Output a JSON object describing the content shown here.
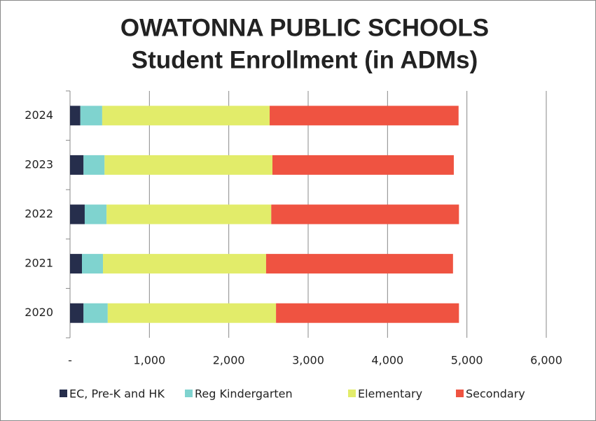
{
  "chart_data": {
    "type": "stacked-barh",
    "title": "OWATONNA PUBLIC SCHOOLS",
    "subtitle": "Student Enrollment (in ADMs)",
    "categories": [
      "2024",
      "2023",
      "2022",
      "2021",
      "2020"
    ],
    "series": [
      {
        "name": "EC, Pre-K and HK",
        "color": "#262e4c",
        "values": [
          130,
          170,
          185,
          150,
          170
        ]
      },
      {
        "name": "Reg Kindergarten",
        "color": "#7fd3cf",
        "values": [
          275,
          265,
          275,
          265,
          305
        ]
      },
      {
        "name": "Elementary",
        "color": "#e2ec6a",
        "values": [
          2110,
          2115,
          2075,
          2055,
          2120
        ]
      },
      {
        "name": "Secondary",
        "color": "#ef5341",
        "values": [
          2380,
          2285,
          2365,
          2355,
          2305
        ]
      }
    ],
    "xlim": [
      0,
      6000
    ],
    "xticks": [
      {
        "value": 0,
        "label": "-"
      },
      {
        "value": 1000,
        "label": "1,000"
      },
      {
        "value": 2000,
        "label": "2,000"
      },
      {
        "value": 3000,
        "label": "3,000"
      },
      {
        "value": 4000,
        "label": "4,000"
      },
      {
        "value": 5000,
        "label": "5,000"
      },
      {
        "value": 6000,
        "label": "6,000"
      }
    ],
    "grid": true,
    "legend": "bottom"
  }
}
